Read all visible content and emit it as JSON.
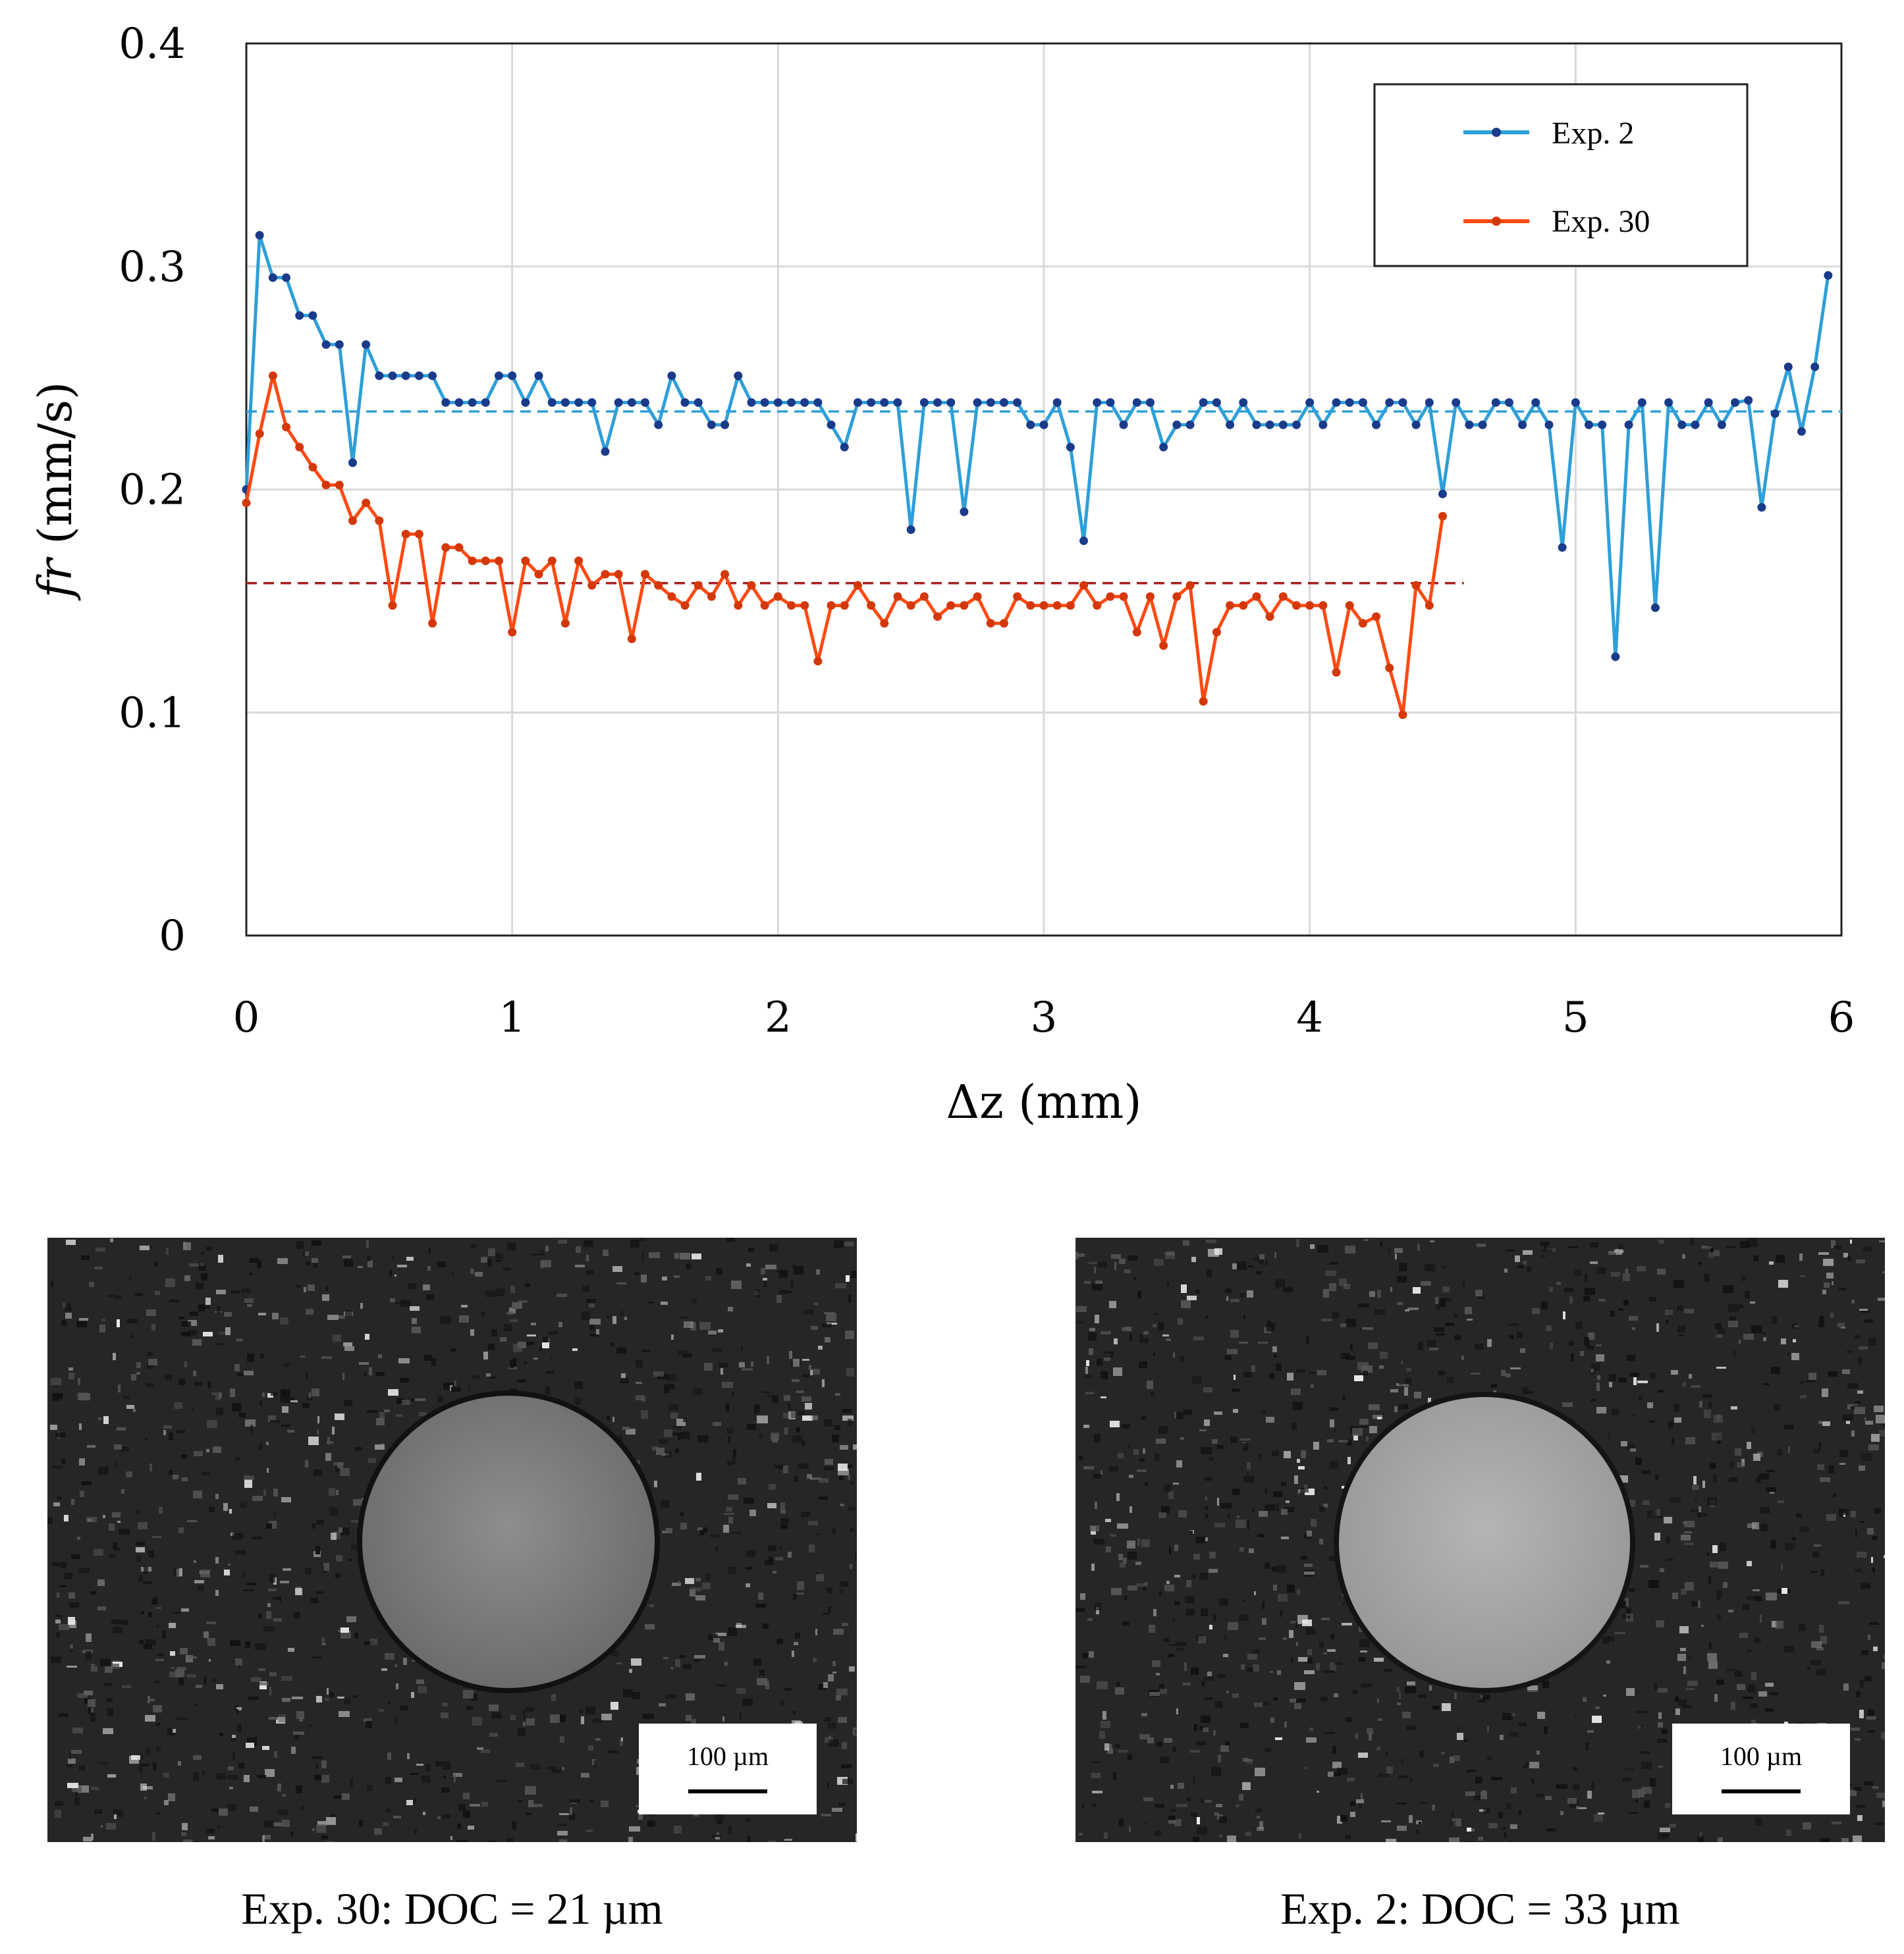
{
  "chart_data": {
    "type": "line",
    "xlabel": "Δz (mm)",
    "ylabel_italic": "fr",
    "ylabel_unit": " (mm/s)",
    "xlim": [
      0,
      6
    ],
    "ylim": [
      0,
      0.4
    ],
    "x_ticks": [
      0,
      1,
      2,
      3,
      4,
      5,
      6
    ],
    "y_ticks": [
      0,
      0.1,
      0.2,
      0.3,
      0.4
    ],
    "y_tick_labels": [
      "0",
      "0.1",
      "0.2",
      "0.3",
      "0.4"
    ],
    "grid": true,
    "legend_position": "top-right",
    "series": [
      {
        "name": "Exp. 2",
        "line_color": "#2e9fd8",
        "marker_color": "#1a3a8a",
        "mean": 0.235,
        "mean_color": "#2e9fd8",
        "values": [
          [
            0,
            0.2
          ],
          [
            0.05,
            0.314
          ],
          [
            0.1,
            0.295
          ],
          [
            0.15,
            0.295
          ],
          [
            0.2,
            0.278
          ],
          [
            0.25,
            0.278
          ],
          [
            0.3,
            0.265
          ],
          [
            0.35,
            0.265
          ],
          [
            0.4,
            0.212
          ],
          [
            0.45,
            0.265
          ],
          [
            0.5,
            0.251
          ],
          [
            0.55,
            0.251
          ],
          [
            0.6,
            0.251
          ],
          [
            0.65,
            0.251
          ],
          [
            0.7,
            0.251
          ],
          [
            0.75,
            0.239
          ],
          [
            0.8,
            0.239
          ],
          [
            0.85,
            0.239
          ],
          [
            0.9,
            0.239
          ],
          [
            0.95,
            0.251
          ],
          [
            1,
            0.251
          ],
          [
            1.05,
            0.239
          ],
          [
            1.1,
            0.251
          ],
          [
            1.15,
            0.239
          ],
          [
            1.2,
            0.239
          ],
          [
            1.25,
            0.239
          ],
          [
            1.3,
            0.239
          ],
          [
            1.35,
            0.217
          ],
          [
            1.4,
            0.239
          ],
          [
            1.45,
            0.239
          ],
          [
            1.5,
            0.239
          ],
          [
            1.55,
            0.229
          ],
          [
            1.6,
            0.251
          ],
          [
            1.65,
            0.239
          ],
          [
            1.7,
            0.239
          ],
          [
            1.75,
            0.229
          ],
          [
            1.8,
            0.229
          ],
          [
            1.85,
            0.251
          ],
          [
            1.9,
            0.239
          ],
          [
            1.95,
            0.239
          ],
          [
            2,
            0.239
          ],
          [
            2.05,
            0.239
          ],
          [
            2.1,
            0.239
          ],
          [
            2.15,
            0.239
          ],
          [
            2.2,
            0.229
          ],
          [
            2.25,
            0.219
          ],
          [
            2.3,
            0.239
          ],
          [
            2.35,
            0.239
          ],
          [
            2.4,
            0.239
          ],
          [
            2.45,
            0.239
          ],
          [
            2.5,
            0.182
          ],
          [
            2.55,
            0.239
          ],
          [
            2.6,
            0.239
          ],
          [
            2.65,
            0.239
          ],
          [
            2.7,
            0.19
          ],
          [
            2.75,
            0.239
          ],
          [
            2.8,
            0.239
          ],
          [
            2.85,
            0.239
          ],
          [
            2.9,
            0.239
          ],
          [
            2.95,
            0.229
          ],
          [
            3,
            0.229
          ],
          [
            3.05,
            0.239
          ],
          [
            3.1,
            0.219
          ],
          [
            3.15,
            0.177
          ],
          [
            3.2,
            0.239
          ],
          [
            3.25,
            0.239
          ],
          [
            3.3,
            0.229
          ],
          [
            3.35,
            0.239
          ],
          [
            3.4,
            0.239
          ],
          [
            3.45,
            0.219
          ],
          [
            3.5,
            0.229
          ],
          [
            3.55,
            0.229
          ],
          [
            3.6,
            0.239
          ],
          [
            3.65,
            0.239
          ],
          [
            3.7,
            0.229
          ],
          [
            3.75,
            0.239
          ],
          [
            3.8,
            0.229
          ],
          [
            3.85,
            0.229
          ],
          [
            3.9,
            0.229
          ],
          [
            3.95,
            0.229
          ],
          [
            4,
            0.239
          ],
          [
            4.05,
            0.229
          ],
          [
            4.1,
            0.239
          ],
          [
            4.15,
            0.239
          ],
          [
            4.2,
            0.239
          ],
          [
            4.25,
            0.229
          ],
          [
            4.3,
            0.239
          ],
          [
            4.35,
            0.239
          ],
          [
            4.4,
            0.229
          ],
          [
            4.45,
            0.239
          ],
          [
            4.5,
            0.198
          ],
          [
            4.55,
            0.239
          ],
          [
            4.6,
            0.229
          ],
          [
            4.65,
            0.229
          ],
          [
            4.7,
            0.239
          ],
          [
            4.75,
            0.239
          ],
          [
            4.8,
            0.229
          ],
          [
            4.85,
            0.239
          ],
          [
            4.9,
            0.229
          ],
          [
            4.95,
            0.174
          ],
          [
            5,
            0.239
          ],
          [
            5.05,
            0.229
          ],
          [
            5.1,
            0.229
          ],
          [
            5.15,
            0.125
          ],
          [
            5.2,
            0.229
          ],
          [
            5.25,
            0.239
          ],
          [
            5.3,
            0.147
          ],
          [
            5.35,
            0.239
          ],
          [
            5.4,
            0.229
          ],
          [
            5.45,
            0.229
          ],
          [
            5.5,
            0.239
          ],
          [
            5.55,
            0.229
          ],
          [
            5.6,
            0.239
          ],
          [
            5.65,
            0.24
          ],
          [
            5.7,
            0.192
          ],
          [
            5.75,
            0.234
          ],
          [
            5.8,
            0.255
          ],
          [
            5.85,
            0.226
          ],
          [
            5.9,
            0.255
          ],
          [
            5.95,
            0.296
          ]
        ]
      },
      {
        "name": "Exp. 30",
        "line_color": "#ff4a12",
        "marker_color": "#d4380a",
        "mean": 0.158,
        "mean_color": "#a81e1e",
        "values": [
          [
            0,
            0.194
          ],
          [
            0.05,
            0.225
          ],
          [
            0.1,
            0.251
          ],
          [
            0.15,
            0.228
          ],
          [
            0.2,
            0.219
          ],
          [
            0.25,
            0.21
          ],
          [
            0.3,
            0.202
          ],
          [
            0.35,
            0.202
          ],
          [
            0.4,
            0.186
          ],
          [
            0.45,
            0.194
          ],
          [
            0.5,
            0.186
          ],
          [
            0.55,
            0.148
          ],
          [
            0.6,
            0.18
          ],
          [
            0.65,
            0.18
          ],
          [
            0.7,
            0.14
          ],
          [
            0.75,
            0.174
          ],
          [
            0.8,
            0.174
          ],
          [
            0.85,
            0.168
          ],
          [
            0.9,
            0.168
          ],
          [
            0.95,
            0.168
          ],
          [
            1,
            0.136
          ],
          [
            1.05,
            0.168
          ],
          [
            1.1,
            0.162
          ],
          [
            1.15,
            0.168
          ],
          [
            1.2,
            0.14
          ],
          [
            1.25,
            0.168
          ],
          [
            1.3,
            0.157
          ],
          [
            1.35,
            0.162
          ],
          [
            1.4,
            0.162
          ],
          [
            1.45,
            0.133
          ],
          [
            1.5,
            0.162
          ],
          [
            1.55,
            0.157
          ],
          [
            1.6,
            0.152
          ],
          [
            1.65,
            0.148
          ],
          [
            1.7,
            0.157
          ],
          [
            1.75,
            0.152
          ],
          [
            1.8,
            0.162
          ],
          [
            1.85,
            0.148
          ],
          [
            1.9,
            0.157
          ],
          [
            1.95,
            0.148
          ],
          [
            2,
            0.152
          ],
          [
            2.05,
            0.148
          ],
          [
            2.1,
            0.148
          ],
          [
            2.15,
            0.123
          ],
          [
            2.2,
            0.148
          ],
          [
            2.25,
            0.148
          ],
          [
            2.3,
            0.157
          ],
          [
            2.35,
            0.148
          ],
          [
            2.4,
            0.14
          ],
          [
            2.45,
            0.152
          ],
          [
            2.5,
            0.148
          ],
          [
            2.55,
            0.152
          ],
          [
            2.6,
            0.143
          ],
          [
            2.65,
            0.148
          ],
          [
            2.7,
            0.148
          ],
          [
            2.75,
            0.152
          ],
          [
            2.8,
            0.14
          ],
          [
            2.85,
            0.14
          ],
          [
            2.9,
            0.152
          ],
          [
            2.95,
            0.148
          ],
          [
            3,
            0.148
          ],
          [
            3.05,
            0.148
          ],
          [
            3.1,
            0.148
          ],
          [
            3.15,
            0.157
          ],
          [
            3.2,
            0.148
          ],
          [
            3.25,
            0.152
          ],
          [
            3.3,
            0.152
          ],
          [
            3.35,
            0.136
          ],
          [
            3.4,
            0.152
          ],
          [
            3.45,
            0.13
          ],
          [
            3.5,
            0.152
          ],
          [
            3.55,
            0.157
          ],
          [
            3.6,
            0.105
          ],
          [
            3.65,
            0.136
          ],
          [
            3.7,
            0.148
          ],
          [
            3.75,
            0.148
          ],
          [
            3.8,
            0.152
          ],
          [
            3.85,
            0.143
          ],
          [
            3.9,
            0.152
          ],
          [
            3.95,
            0.148
          ],
          [
            4,
            0.148
          ],
          [
            4.05,
            0.148
          ],
          [
            4.1,
            0.118
          ],
          [
            4.15,
            0.148
          ],
          [
            4.2,
            0.14
          ],
          [
            4.25,
            0.143
          ],
          [
            4.3,
            0.12
          ],
          [
            4.35,
            0.099
          ],
          [
            4.4,
            0.157
          ],
          [
            4.45,
            0.148
          ],
          [
            4.5,
            0.188
          ]
        ]
      }
    ]
  },
  "images": [
    {
      "scale_label": "100 µm",
      "caption": "Exp. 30: DOC = 21 µm"
    },
    {
      "scale_label": "100 µm",
      "caption": "Exp. 2: DOC = 33 µm"
    }
  ]
}
